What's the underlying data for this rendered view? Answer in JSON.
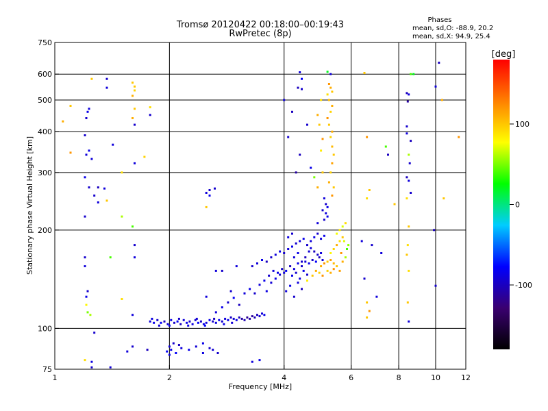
{
  "chart_data": {
    "type": "scatter",
    "title": "Tromsø 20120422 00:18:00–00:19:43",
    "subtitle": "RwPretec (8p)",
    "xlabel": "Frequency [MHz]",
    "ylabel": "Stationary phase Virtual Height [km]",
    "xscale": "log",
    "yscale": "log",
    "xlim": [
      1,
      12
    ],
    "ylim": [
      75,
      750
    ],
    "xticks": [
      1,
      2,
      4,
      6,
      8,
      10,
      12
    ],
    "yticks": [
      75,
      100,
      200,
      300,
      400,
      500,
      600,
      750
    ],
    "xgrid": [
      2,
      4,
      6,
      8,
      10
    ],
    "ygrid": [
      100,
      200,
      300,
      400,
      500,
      600
    ],
    "grid": true,
    "annotation": {
      "heading": "Phases",
      "line1": "mean, sd,O: -88.9, 20.2",
      "line2": "mean, sd,X:  94.9, 25.4"
    },
    "colorbar": {
      "label": "[deg]",
      "ticks": [
        100,
        0,
        -100
      ],
      "range": [
        -180,
        180
      ],
      "colors": [
        "#000000",
        "#3a0070",
        "#0000ff",
        "#00ccff",
        "#00ff00",
        "#ffff00",
        "#ff8000",
        "#ff0000"
      ]
    },
    "points": [
      [
        1.78,
        105,
        -90
      ],
      [
        1.82,
        104,
        -85
      ],
      [
        1.86,
        106,
        -95
      ],
      [
        1.9,
        104,
        -80
      ],
      [
        1.94,
        105,
        -100
      ],
      [
        1.98,
        103,
        -90
      ],
      [
        2.02,
        106,
        -85
      ],
      [
        2.06,
        104,
        -95
      ],
      [
        2.1,
        105,
        -80
      ],
      [
        2.14,
        103,
        -100
      ],
      [
        2.18,
        106,
        -90
      ],
      [
        2.22,
        104,
        -85
      ],
      [
        2.26,
        105,
        -95
      ],
      [
        2.3,
        103,
        -88
      ],
      [
        2.34,
        106,
        -92
      ],
      [
        2.38,
        104,
        -80
      ],
      [
        2.42,
        105,
        -97
      ],
      [
        2.46,
        103,
        -86
      ],
      [
        2.5,
        104,
        -90
      ],
      [
        2.55,
        106,
        -84
      ],
      [
        2.6,
        105,
        -96
      ],
      [
        2.65,
        104,
        -89
      ],
      [
        2.7,
        106,
        -82
      ],
      [
        2.75,
        105,
        -94
      ],
      [
        2.8,
        107,
        -90
      ],
      [
        2.85,
        106,
        -86
      ],
      [
        2.9,
        108,
        -98
      ],
      [
        2.95,
        107,
        -92
      ],
      [
        3.0,
        106,
        -85
      ],
      [
        3.05,
        108,
        -100
      ],
      [
        3.1,
        107,
        -110
      ],
      [
        3.15,
        106,
        -105
      ],
      [
        3.2,
        108,
        -115
      ],
      [
        3.25,
        107,
        -108
      ],
      [
        3.3,
        109,
        -112
      ],
      [
        3.35,
        108,
        -104
      ],
      [
        3.4,
        110,
        -100
      ],
      [
        3.45,
        109,
        -95
      ],
      [
        3.5,
        111,
        -90
      ],
      [
        3.55,
        110,
        -85
      ],
      [
        1.8,
        107,
        -88
      ],
      [
        1.88,
        102,
        -92
      ],
      [
        2.0,
        102,
        -84
      ],
      [
        2.12,
        107,
        -96
      ],
      [
        2.24,
        102,
        -87
      ],
      [
        2.36,
        107,
        -93
      ],
      [
        2.48,
        102,
        -81
      ],
      [
        2.62,
        107,
        -99
      ],
      [
        2.78,
        103,
        -86
      ],
      [
        2.92,
        104,
        -92
      ],
      [
        2.0,
        88,
        -90
      ],
      [
        2.02,
        86,
        -85
      ],
      [
        2.05,
        90,
        -95
      ],
      [
        2.08,
        84,
        -80
      ],
      [
        2.12,
        89,
        -100
      ],
      [
        2.15,
        87,
        -90
      ],
      [
        2.25,
        86,
        -85
      ],
      [
        2.35,
        88,
        -92
      ],
      [
        2.45,
        84,
        -88
      ],
      [
        2.55,
        87,
        -95
      ],
      [
        2.0,
        83,
        -90
      ],
      [
        1.97,
        85,
        -80
      ],
      [
        1.75,
        86,
        -100
      ],
      [
        1.6,
        88,
        -95
      ],
      [
        1.55,
        85,
        -90
      ],
      [
        2.45,
        90,
        -85
      ],
      [
        2.6,
        86,
        -92
      ],
      [
        2.68,
        84,
        -95
      ],
      [
        3.3,
        79,
        -90
      ],
      [
        3.45,
        80,
        -85
      ],
      [
        1.4,
        76,
        -92
      ],
      [
        1.25,
        79,
        -88
      ],
      [
        2.65,
        112,
        -90
      ],
      [
        2.75,
        116,
        -85
      ],
      [
        2.85,
        120,
        -95
      ],
      [
        2.95,
        124,
        -80
      ],
      [
        3.05,
        118,
        -100
      ],
      [
        3.15,
        128,
        -90
      ],
      [
        3.25,
        132,
        -85
      ],
      [
        3.35,
        128,
        -95
      ],
      [
        3.45,
        136,
        -90
      ],
      [
        3.55,
        140,
        -85
      ],
      [
        3.65,
        145,
        -95
      ],
      [
        3.75,
        150,
        -90
      ],
      [
        3.85,
        148,
        -85
      ],
      [
        3.95,
        152,
        -95
      ],
      [
        4.05,
        150,
        -80
      ],
      [
        4.15,
        155,
        -100
      ],
      [
        4.25,
        152,
        -90
      ],
      [
        4.35,
        158,
        -85
      ],
      [
        4.45,
        155,
        -95
      ],
      [
        4.55,
        160,
        -90
      ],
      [
        4.65,
        158,
        -85
      ],
      [
        4.75,
        162,
        -95
      ],
      [
        4.85,
        160,
        -80
      ],
      [
        4.95,
        165,
        -100
      ],
      [
        5.05,
        162,
        -90
      ],
      [
        3.6,
        130,
        -88
      ],
      [
        3.7,
        138,
        -92
      ],
      [
        3.8,
        142,
        -86
      ],
      [
        3.9,
        146,
        -94
      ],
      [
        4.0,
        148,
        -90
      ],
      [
        3.3,
        155,
        -95
      ],
      [
        3.4,
        158,
        -90
      ],
      [
        3.5,
        162,
        -85
      ],
      [
        3.6,
        160,
        -100
      ],
      [
        3.7,
        165,
        -95
      ],
      [
        3.8,
        168,
        -90
      ],
      [
        3.9,
        172,
        -85
      ],
      [
        4.0,
        170,
        -95
      ],
      [
        4.1,
        175,
        -90
      ],
      [
        4.2,
        178,
        -85
      ],
      [
        4.3,
        182,
        -95
      ],
      [
        4.4,
        185,
        -90
      ],
      [
        4.5,
        188,
        -85
      ],
      [
        4.6,
        180,
        -95
      ],
      [
        4.7,
        176,
        -90
      ],
      [
        4.8,
        172,
        -100
      ],
      [
        4.9,
        168,
        -95
      ],
      [
        5.0,
        170,
        -90
      ],
      [
        4.1,
        190,
        -88
      ],
      [
        4.2,
        195,
        -95
      ],
      [
        4.25,
        165,
        -90
      ],
      [
        4.35,
        170,
        -85
      ],
      [
        4.45,
        160,
        -95
      ],
      [
        4.55,
        165,
        -100
      ],
      [
        4.65,
        172,
        -92
      ],
      [
        4.2,
        145,
        -85
      ],
      [
        4.3,
        148,
        -95
      ],
      [
        4.4,
        142,
        -90
      ],
      [
        4.5,
        150,
        -85
      ],
      [
        4.6,
        146,
        -95
      ],
      [
        4.05,
        130,
        -90
      ],
      [
        4.15,
        135,
        -85
      ],
      [
        4.25,
        125,
        -95
      ],
      [
        4.35,
        138,
        -90
      ],
      [
        4.45,
        132,
        -100
      ],
      [
        4.7,
        185,
        -90
      ],
      [
        4.8,
        190,
        -85
      ],
      [
        4.9,
        195,
        -95
      ],
      [
        5.0,
        188,
        -90
      ],
      [
        5.1,
        192,
        -85
      ],
      [
        5.1,
        215,
        -95
      ],
      [
        5.15,
        225,
        -90
      ],
      [
        5.2,
        220,
        -85
      ],
      [
        5.05,
        230,
        -95
      ],
      [
        4.9,
        210,
        -90
      ],
      [
        5.0,
        155,
        110
      ],
      [
        5.1,
        158,
        120
      ],
      [
        5.2,
        160,
        100
      ],
      [
        5.3,
        162,
        115
      ],
      [
        5.4,
        158,
        105
      ],
      [
        5.2,
        150,
        95
      ],
      [
        5.3,
        148,
        110
      ],
      [
        5.4,
        152,
        120
      ],
      [
        5.5,
        155,
        100
      ],
      [
        5.6,
        150,
        115
      ],
      [
        5.3,
        170,
        80
      ],
      [
        5.4,
        175,
        95
      ],
      [
        5.5,
        180,
        110
      ],
      [
        5.6,
        185,
        90
      ],
      [
        5.7,
        190,
        100
      ],
      [
        5.5,
        195,
        75
      ],
      [
        5.6,
        200,
        85
      ],
      [
        5.7,
        205,
        70
      ],
      [
        5.8,
        210,
        90
      ],
      [
        5.65,
        170,
        120
      ],
      [
        4.75,
        145,
        100
      ],
      [
        4.85,
        150,
        110
      ],
      [
        4.95,
        148,
        95
      ],
      [
        5.05,
        145,
        120
      ],
      [
        4.6,
        140,
        85
      ],
      [
        5.8,
        165,
        60
      ],
      [
        5.85,
        175,
        40
      ],
      [
        5.7,
        160,
        110
      ],
      [
        5.9,
        180,
        55
      ],
      [
        5.75,
        185,
        70
      ],
      [
        4.4,
        608,
        -90
      ],
      [
        4.45,
        580,
        -80
      ],
      [
        4.35,
        545,
        -100
      ],
      [
        4.45,
        540,
        -95
      ],
      [
        4.3,
        300,
        -110
      ],
      [
        4.4,
        340,
        -100
      ],
      [
        4.1,
        385,
        -95
      ],
      [
        4.0,
        500,
        -90
      ],
      [
        4.7,
        310,
        -85
      ],
      [
        4.6,
        420,
        -95
      ],
      [
        4.2,
        460,
        -100
      ],
      [
        4.8,
        290,
        50
      ],
      [
        5.2,
        610,
        20
      ],
      [
        5.3,
        600,
        -90
      ],
      [
        5.25,
        560,
        120
      ],
      [
        5.3,
        545,
        110
      ],
      [
        5.35,
        530,
        100
      ],
      [
        5.2,
        520,
        90
      ],
      [
        5.25,
        500,
        105
      ],
      [
        5.35,
        480,
        110
      ],
      [
        5.3,
        460,
        95
      ],
      [
        5.2,
        440,
        120
      ],
      [
        5.25,
        420,
        100
      ],
      [
        5.35,
        400,
        110
      ],
      [
        5.3,
        385,
        95
      ],
      [
        5.35,
        360,
        105
      ],
      [
        5.4,
        340,
        100
      ],
      [
        5.35,
        320,
        115
      ],
      [
        5.3,
        300,
        95
      ],
      [
        5.25,
        280,
        110
      ],
      [
        5.4,
        270,
        100
      ],
      [
        5.35,
        255,
        120
      ],
      [
        4.9,
        450,
        110
      ],
      [
        5.0,
        500,
        90
      ],
      [
        4.95,
        420,
        100
      ],
      [
        5.05,
        380,
        120
      ],
      [
        5.0,
        350,
        85
      ],
      [
        5.05,
        300,
        100
      ],
      [
        4.9,
        270,
        110
      ],
      [
        5.1,
        250,
        -90
      ],
      [
        5.15,
        240,
        -95
      ],
      [
        5.2,
        235,
        -85
      ],
      [
        1.25,
        580,
        100
      ],
      [
        1.37,
        580,
        -95
      ],
      [
        1.37,
        545,
        -90
      ],
      [
        1.21,
        440,
        -95
      ],
      [
        1.23,
        470,
        -90
      ],
      [
        1.22,
        460,
        -85
      ],
      [
        1.2,
        390,
        -95
      ],
      [
        1.21,
        340,
        -90
      ],
      [
        1.23,
        350,
        -85
      ],
      [
        1.25,
        330,
        -90
      ],
      [
        1.2,
        290,
        -85
      ],
      [
        1.23,
        270,
        -95
      ],
      [
        1.3,
        270,
        -100
      ],
      [
        1.35,
        268,
        -90
      ],
      [
        1.27,
        255,
        -95
      ],
      [
        1.3,
        243,
        -90
      ],
      [
        1.37,
        246,
        100
      ],
      [
        1.2,
        220,
        -95
      ],
      [
        1.5,
        220,
        60
      ],
      [
        1.42,
        365,
        -90
      ],
      [
        1.5,
        300,
        90
      ],
      [
        1.2,
        165,
        -95
      ],
      [
        1.2,
        155,
        -90
      ],
      [
        1.22,
        130,
        -95
      ],
      [
        1.21,
        125,
        -85
      ],
      [
        1.21,
        118,
        80
      ],
      [
        1.22,
        112,
        50
      ],
      [
        1.24,
        110,
        60
      ],
      [
        1.27,
        97,
        -95
      ],
      [
        1.2,
        80,
        90
      ],
      [
        1.25,
        76,
        -95
      ],
      [
        1.4,
        165,
        40
      ],
      [
        1.5,
        123,
        90
      ],
      [
        1.6,
        110,
        -90
      ],
      [
        1.1,
        345,
        120
      ],
      [
        1.05,
        430,
        110
      ],
      [
        1.1,
        480,
        100
      ],
      [
        1.6,
        565,
        100
      ],
      [
        1.62,
        550,
        100
      ],
      [
        1.62,
        535,
        95
      ],
      [
        1.6,
        515,
        110
      ],
      [
        1.62,
        470,
        100
      ],
      [
        1.6,
        440,
        110
      ],
      [
        1.62,
        420,
        -95
      ],
      [
        1.62,
        320,
        -90
      ],
      [
        1.6,
        205,
        40
      ],
      [
        1.62,
        180,
        -95
      ],
      [
        1.62,
        165,
        -90
      ],
      [
        1.78,
        450,
        -95
      ],
      [
        1.78,
        475,
        90
      ],
      [
        1.72,
        335,
        95
      ],
      [
        2.55,
        265,
        -95
      ],
      [
        2.5,
        260,
        -90
      ],
      [
        2.55,
        255,
        -85
      ],
      [
        2.63,
        268,
        -95
      ],
      [
        2.5,
        235,
        100
      ],
      [
        2.65,
        150,
        -90
      ],
      [
        2.75,
        150,
        -95
      ],
      [
        2.5,
        125,
        -90
      ],
      [
        2.9,
        130,
        -95
      ],
      [
        3.0,
        155,
        -90
      ],
      [
        6.5,
        605,
        100
      ],
      [
        6.6,
        385,
        120
      ],
      [
        6.7,
        265,
        100
      ],
      [
        6.6,
        250,
        90
      ],
      [
        6.4,
        185,
        -90
      ],
      [
        6.8,
        180,
        -95
      ],
      [
        7.2,
        170,
        -90
      ],
      [
        7.5,
        340,
        -100
      ],
      [
        7.8,
        240,
        100
      ],
      [
        6.6,
        120,
        100
      ],
      [
        6.7,
        113,
        120
      ],
      [
        6.6,
        108,
        100
      ],
      [
        7.0,
        125,
        -90
      ],
      [
        6.5,
        142,
        -95
      ],
      [
        8.4,
        525,
        -100
      ],
      [
        8.5,
        520,
        -90
      ],
      [
        8.45,
        495,
        -110
      ],
      [
        8.4,
        415,
        -95
      ],
      [
        8.4,
        395,
        -90
      ],
      [
        8.6,
        375,
        -100
      ],
      [
        8.5,
        340,
        60
      ],
      [
        8.55,
        320,
        -95
      ],
      [
        8.4,
        290,
        -100
      ],
      [
        8.5,
        283,
        -90
      ],
      [
        8.6,
        260,
        -95
      ],
      [
        8.4,
        250,
        90
      ],
      [
        8.5,
        205,
        100
      ],
      [
        8.45,
        180,
        90
      ],
      [
        8.4,
        168,
        100
      ],
      [
        8.5,
        150,
        90
      ],
      [
        8.45,
        120,
        100
      ],
      [
        8.5,
        105,
        -90
      ],
      [
        8.6,
        600,
        40
      ],
      [
        8.75,
        600,
        20
      ],
      [
        10.0,
        550,
        -90
      ],
      [
        10.2,
        650,
        -100
      ],
      [
        10.4,
        500,
        110
      ],
      [
        10.5,
        250,
        100
      ],
      [
        10.0,
        135,
        -95
      ],
      [
        11.5,
        385,
        120
      ],
      [
        9.9,
        200,
        -100
      ],
      [
        7.4,
        360,
        40
      ]
    ]
  }
}
